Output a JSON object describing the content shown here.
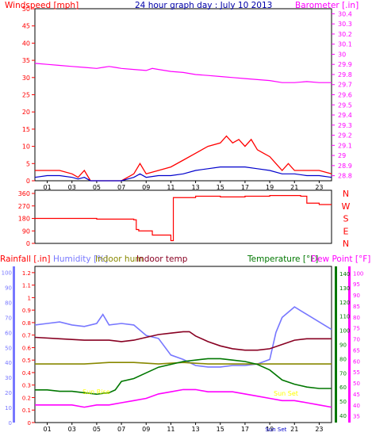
{
  "chart_data": [
    {
      "type": "line",
      "title": "24 hour graph day : July 10 2013",
      "left_axis_label": "Windspeed [mph]",
      "right_axis_label": "Barometer [.in]",
      "left_ticks": [
        "0",
        "5",
        "10",
        "15",
        "20",
        "25",
        "30",
        "35",
        "40",
        "45",
        "50"
      ],
      "left_range": [
        0,
        50
      ],
      "right_ticks": [
        "28.8",
        "28.9",
        "29",
        "29.1",
        "29.2",
        "29.3",
        "29.4",
        "29.5",
        "29.6",
        "29.7",
        "29.8",
        "29.9",
        "30",
        "30.1",
        "30.2",
        "30.3",
        "30.4"
      ],
      "right_range": [
        28.75,
        30.45
      ],
      "x_ticks": [
        "01",
        "03",
        "05",
        "07",
        "09",
        "11",
        "13",
        "15",
        "17",
        "19",
        "21",
        "23"
      ],
      "x_range": [
        0,
        24
      ],
      "colors": {
        "wind_gust": "#ff0000",
        "wind_avg": "#0000cc",
        "barometer": "#ff00ff",
        "left_axis": "#ff0000",
        "right_axis": "#ff00ff"
      },
      "series": [
        {
          "axis": "right",
          "color": "#ff00ff",
          "x": [
            0,
            1,
            2,
            3,
            4,
            5,
            5.5,
            6,
            6.5,
            7,
            8,
            9,
            9.5,
            10,
            11,
            12,
            13,
            14,
            15,
            16,
            17,
            18,
            19,
            20,
            21,
            22,
            23,
            24
          ],
          "values": [
            29.91,
            29.9,
            29.89,
            29.88,
            29.87,
            29.86,
            29.87,
            29.88,
            29.87,
            29.86,
            29.85,
            29.84,
            29.86,
            29.85,
            29.83,
            29.82,
            29.8,
            29.79,
            29.78,
            29.77,
            29.76,
            29.75,
            29.74,
            29.72,
            29.72,
            29.73,
            29.72,
            29.72
          ]
        },
        {
          "axis": "left",
          "color": "#ff0000",
          "x": [
            0,
            1,
            2,
            3,
            3.5,
            4,
            4.5,
            5,
            6,
            7,
            7.5,
            8,
            8.5,
            9,
            10,
            11,
            12,
            13,
            14,
            15,
            15.5,
            16,
            16.5,
            17,
            17.5,
            18,
            18.5,
            19,
            19.5,
            20,
            20.5,
            21,
            22,
            23,
            24
          ],
          "values": [
            3,
            3,
            3,
            2,
            1,
            3,
            0,
            0,
            0,
            0,
            1,
            2,
            5,
            2,
            3,
            4,
            6,
            8,
            10,
            11,
            13,
            11,
            12,
            10,
            12,
            9,
            8,
            7,
            5,
            3,
            5,
            3,
            3,
            3,
            2
          ]
        },
        {
          "axis": "left",
          "color": "#0000cc",
          "x": [
            0,
            1,
            2,
            3,
            3.5,
            4,
            4.5,
            5,
            6,
            7,
            7.5,
            8,
            8.5,
            9,
            10,
            11,
            12,
            13,
            14,
            15,
            16,
            17,
            18,
            19,
            20,
            21,
            22,
            23,
            24
          ],
          "values": [
            1,
            1.5,
            1.5,
            1,
            0.5,
            1,
            0,
            0,
            0,
            0,
            0.5,
            1,
            2,
            1,
            1.5,
            1.5,
            2,
            3,
            3.5,
            4,
            4,
            4,
            3.5,
            3,
            2,
            2,
            1.5,
            1.5,
            1
          ]
        }
      ]
    },
    {
      "type": "line",
      "left_ticks": [
        "0",
        "90",
        "180",
        "270",
        "360"
      ],
      "left_range": [
        0,
        360
      ],
      "right_labels": [
        "N",
        "W",
        "S",
        "E",
        "N"
      ],
      "x_range": [
        0,
        24
      ],
      "colors": {
        "direction": "#ff0000"
      },
      "series": [
        {
          "color": "#ff0000",
          "x": [
            0,
            4,
            5,
            8,
            8.2,
            8.4,
            9.5,
            11,
            11.2,
            12,
            13,
            15,
            17,
            19,
            20,
            21.5,
            22,
            23,
            24
          ],
          "values": [
            180,
            180,
            175,
            170,
            100,
            90,
            60,
            20,
            330,
            330,
            340,
            335,
            340,
            345,
            345,
            340,
            290,
            280,
            280
          ]
        }
      ]
    },
    {
      "type": "line",
      "legend": [
        {
          "name": "Rainfall [.in]",
          "color": "#ff0000"
        },
        {
          "name": "Humidity [%]",
          "color": "#7777ff"
        },
        {
          "name": "Indoor hum",
          "color": "#888800"
        },
        {
          "name": "Indoor temp",
          "color": "#880022"
        },
        {
          "name": "Temperature [°F]",
          "color": "#007700"
        },
        {
          "name": "Dew Point [°F]",
          "color": "#ff00ff"
        }
      ],
      "rain_ticks": [
        "0",
        "0.1",
        "0.2",
        "0.3",
        "0.4",
        "0.5",
        "0.6",
        "0.7",
        "0.8",
        "0.9",
        "1",
        "1.1",
        "1.2"
      ],
      "rain_range": [
        0,
        1.25
      ],
      "humidity_ticks": [
        "0",
        "10",
        "20",
        "30",
        "40",
        "50",
        "60",
        "70",
        "80",
        "90",
        "100"
      ],
      "humidity_range": [
        0,
        104
      ],
      "temp_ticks": [
        "40",
        "50",
        "60",
        "70",
        "80",
        "90",
        "100",
        "110",
        "120",
        "130",
        "140"
      ],
      "temp_range": [
        35,
        145
      ],
      "dew_ticks": [
        "35",
        "40",
        "45",
        "50",
        "55",
        "60",
        "65",
        "70",
        "75",
        "80",
        "85",
        "90",
        "95",
        "100"
      ],
      "dew_range": [
        32,
        103
      ],
      "x_ticks": [
        "01",
        "03",
        "05",
        "07",
        "09",
        "11",
        "13",
        "15",
        "17",
        "19",
        "21",
        "23"
      ],
      "x_range": [
        0,
        24
      ],
      "annotations": [
        "Sun Rise",
        "Sun Set"
      ],
      "colors": {
        "annotation": "#ffff00",
        "sunset_x_label": "#0000cc"
      },
      "series": [
        {
          "name": "Humidity [%]",
          "axis": "humidity",
          "color": "#7777ff",
          "x": [
            0,
            1,
            2,
            3,
            4,
            5,
            5.5,
            6,
            7,
            8,
            9,
            10,
            11,
            12,
            13,
            14,
            15,
            16,
            17,
            18,
            19,
            19.5,
            20,
            21,
            22,
            23,
            24
          ],
          "values": [
            65,
            66,
            67,
            65,
            64,
            66,
            72,
            65,
            66,
            65,
            58,
            56,
            45,
            42,
            38,
            37,
            37,
            38,
            38,
            39,
            42,
            60,
            70,
            77,
            72,
            67,
            62
          ]
        },
        {
          "name": "Indoor hum",
          "axis": "humidity",
          "color": "#888800",
          "x": [
            0,
            2,
            4,
            6,
            8,
            10,
            12,
            14,
            16,
            18,
            20,
            22,
            24
          ],
          "values": [
            39,
            39,
            39,
            40,
            40,
            39,
            40,
            39,
            39,
            39,
            39,
            39,
            39
          ]
        },
        {
          "name": "Indoor temp",
          "axis": "temp",
          "color": "#880022",
          "x": [
            0,
            2,
            4,
            6,
            7,
            8,
            9,
            10,
            11,
            12,
            12.5,
            13,
            14,
            15,
            16,
            17,
            18,
            19,
            20,
            21,
            22,
            23,
            24
          ],
          "values": [
            95,
            94,
            93,
            93,
            92,
            93,
            95,
            97,
            98,
            99,
            99,
            96,
            92,
            89,
            87,
            86,
            86,
            87,
            90,
            93,
            94,
            94,
            94
          ]
        },
        {
          "name": "Temperature [°F]",
          "axis": "temp",
          "color": "#007700",
          "x": [
            0,
            1,
            2,
            3,
            4,
            5,
            6,
            6.5,
            7,
            8,
            9,
            10,
            11,
            12,
            13,
            14,
            15,
            16,
            17,
            18,
            19,
            20,
            21,
            22,
            23,
            24
          ],
          "values": [
            58,
            58,
            57,
            57,
            56,
            55,
            56,
            58,
            64,
            66,
            70,
            74,
            76,
            78,
            79,
            80,
            80,
            79,
            78,
            76,
            72,
            65,
            62,
            60,
            59,
            59
          ]
        },
        {
          "name": "Dew Point [°F]",
          "axis": "dew",
          "color": "#ff00ff",
          "x": [
            0,
            1,
            2,
            3,
            4,
            5,
            6,
            7,
            8,
            9,
            10,
            11,
            12,
            13,
            14,
            15,
            16,
            17,
            18,
            19,
            20,
            21,
            22,
            23,
            24
          ],
          "values": [
            40,
            40,
            40,
            40,
            39,
            40,
            40,
            41,
            42,
            43,
            45,
            46,
            47,
            47,
            46,
            46,
            46,
            45,
            44,
            43,
            42,
            42,
            41,
            40,
            39
          ]
        }
      ]
    }
  ]
}
